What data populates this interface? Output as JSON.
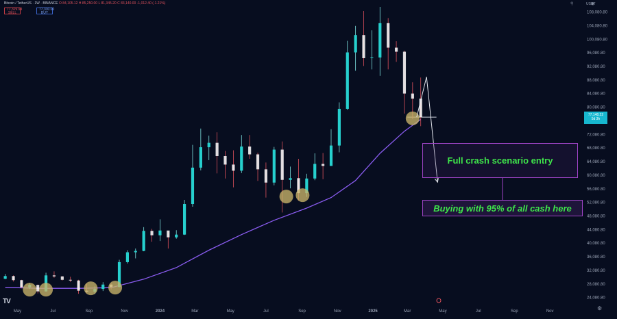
{
  "header": {
    "symbol_line": "Bitcoin / TetherUS · 1W · BINANCE",
    "ohlc": "O 84,105.12  H 85,250.00  L 81,345.20  C 83,140.00  -1,012.40 (-1.21%)",
    "sell_box": "77,329.99\nSELL",
    "buy_box": "77,330.00\nBUY",
    "currency": "USDT",
    "sell_color": "#e0525c",
    "buy_color": "#3a63c9"
  },
  "price_tag": "77,148.22\n5d 3h",
  "annotations": {
    "entry_label": "Full crash scenario entry",
    "buying_label": "Buying with 95% of all cash here"
  },
  "icons": {
    "tradingview_logo": "TV",
    "settings": "gear-icon",
    "replay": "replay-icon"
  },
  "chart_data": {
    "type": "candlestick",
    "title": "",
    "x_ticks": [
      "May",
      "Jul",
      "Sep",
      "Nov",
      "2024",
      "Mar",
      "May",
      "Jul",
      "Sep",
      "Nov",
      "2025",
      "Mar",
      "May",
      "Jul",
      "Sep",
      "Nov"
    ],
    "y_ticks": [
      24080.8,
      28080.8,
      32080.8,
      36080.8,
      40080.8,
      44080.8,
      48080.8,
      52080.8,
      56080.8,
      60080.8,
      64080.8,
      68080.8,
      72080.8,
      76080.8,
      80080.8,
      84080.8,
      88080.8,
      92080.8,
      96080.8,
      100080.8,
      104080.8,
      108080.8
    ],
    "ylim": [
      22000,
      110000
    ],
    "x_range": [
      "2023-04",
      "2025-12"
    ],
    "up_color": "#26d0ce",
    "down_color": "#e0525c",
    "candles_weekly_close": [
      [
        "2023-04-10",
        29600,
        31000,
        29500,
        30400
      ],
      [
        "2023-04-24",
        30400,
        30600,
        28800,
        29200
      ],
      [
        "2023-05-08",
        29200,
        29300,
        26800,
        27100
      ],
      [
        "2023-05-22",
        27100,
        28400,
        26600,
        27800
      ],
      [
        "2023-06-05",
        27800,
        27900,
        25300,
        25900
      ],
      [
        "2023-06-19",
        25900,
        31400,
        25800,
        30600
      ],
      [
        "2023-07-03",
        30600,
        31800,
        29900,
        30300
      ],
      [
        "2023-07-17",
        30300,
        30400,
        29100,
        29300
      ],
      [
        "2023-07-31",
        29300,
        30200,
        28700,
        29100
      ],
      [
        "2023-08-14",
        29100,
        29300,
        25200,
        26100
      ],
      [
        "2023-08-28",
        26100,
        28100,
        25400,
        25800
      ],
      [
        "2023-09-11",
        25800,
        27400,
        25100,
        26600
      ],
      [
        "2023-09-25",
        26600,
        28600,
        26000,
        27900
      ],
      [
        "2023-10-09",
        27900,
        28300,
        26500,
        27200
      ],
      [
        "2023-10-23",
        27200,
        35200,
        27100,
        34500
      ],
      [
        "2023-11-06",
        34500,
        38000,
        34100,
        37400
      ],
      [
        "2023-11-20",
        37400,
        38500,
        35600,
        37800
      ],
      [
        "2023-12-04",
        37800,
        44800,
        37700,
        43700
      ],
      [
        "2023-12-18",
        43700,
        44300,
        40500,
        42400
      ],
      [
        "2024-01-01",
        42400,
        47100,
        40700,
        43800
      ],
      [
        "2024-01-15",
        43800,
        43600,
        38500,
        41800
      ],
      [
        "2024-01-29",
        41800,
        43900,
        41400,
        42600
      ],
      [
        "2024-02-12",
        42600,
        52800,
        42500,
        51600
      ],
      [
        "2024-02-26",
        51600,
        69000,
        50800,
        62300
      ],
      [
        "2024-03-11",
        62300,
        73800,
        61500,
        68300
      ],
      [
        "2024-03-25",
        68300,
        71700,
        64500,
        69600
      ],
      [
        "2024-04-08",
        69600,
        72700,
        60600,
        65700
      ],
      [
        "2024-04-22",
        65700,
        67200,
        59100,
        63200
      ],
      [
        "2024-05-06",
        63200,
        67400,
        56500,
        61400
      ],
      [
        "2024-05-20",
        61400,
        71900,
        60700,
        68500
      ],
      [
        "2024-06-03",
        68500,
        71900,
        64900,
        66200
      ],
      [
        "2024-06-17",
        66200,
        66700,
        58400,
        61800
      ],
      [
        "2024-07-01",
        61800,
        63800,
        53500,
        57900
      ],
      [
        "2024-07-15",
        57900,
        68400,
        57100,
        67600
      ],
      [
        "2024-07-29",
        67600,
        70000,
        49100,
        58700
      ],
      [
        "2024-08-12",
        58700,
        62600,
        56200,
        59200
      ],
      [
        "2024-08-26",
        59200,
        64900,
        52600,
        54800
      ],
      [
        "2024-09-09",
        54800,
        60500,
        53700,
        59100
      ],
      [
        "2024-09-23",
        59100,
        66500,
        58600,
        63400
      ],
      [
        "2024-10-07",
        63400,
        66600,
        58900,
        62800
      ],
      [
        "2024-10-21",
        62800,
        73600,
        65500,
        68800
      ],
      [
        "2024-11-04",
        68800,
        81500,
        66800,
        79600
      ],
      [
        "2024-11-18",
        79600,
        99600,
        79300,
        96200
      ],
      [
        "2024-12-02",
        96200,
        104000,
        90800,
        101300
      ],
      [
        "2024-12-16",
        101300,
        108400,
        92200,
        94500
      ],
      [
        "2024-12-30",
        94500,
        102700,
        91200,
        94700
      ],
      [
        "2025-01-13",
        94700,
        109600,
        89300,
        104800
      ],
      [
        "2025-01-27",
        104800,
        106300,
        91200,
        97600
      ],
      [
        "2025-02-10",
        97600,
        99500,
        93400,
        96400
      ],
      [
        "2025-02-24",
        96400,
        96700,
        78200,
        84100
      ],
      [
        "2025-03-10",
        84100,
        87400,
        76600,
        82600
      ],
      [
        "2025-03-24",
        82600,
        88800,
        74500,
        77148
      ]
    ],
    "series": [
      {
        "type": "moving-average",
        "color": "#8a5cf0",
        "points": [
          [
            "2023-04-10",
            27100
          ],
          [
            "2023-06-05",
            26800
          ],
          [
            "2023-08-14",
            26800
          ],
          [
            "2023-10-09",
            27000
          ],
          [
            "2023-12-04",
            29500
          ],
          [
            "2024-01-29",
            32900
          ],
          [
            "2024-03-25",
            38000
          ],
          [
            "2024-05-20",
            42600
          ],
          [
            "2024-07-15",
            46800
          ],
          [
            "2024-09-09",
            50400
          ],
          [
            "2024-10-21",
            53500
          ],
          [
            "2024-12-02",
            58500
          ],
          [
            "2025-01-13",
            66500
          ],
          [
            "2025-02-24",
            73000
          ],
          [
            "2025-03-24",
            76500
          ]
        ]
      },
      {
        "type": "horizontal-line",
        "name": "",
        "value": 77148.22,
        "from": "2025-03-01",
        "to": "2025-04-20",
        "color": "#cfd4de"
      }
    ],
    "markers": [
      {
        "date": "2023-05-22",
        "price": 26400
      },
      {
        "date": "2023-06-19",
        "price": 26400
      },
      {
        "date": "2023-09-04",
        "price": 26800
      },
      {
        "date": "2023-10-16",
        "price": 27000
      },
      {
        "date": "2024-08-05",
        "price": 53800
      },
      {
        "date": "2024-09-02",
        "price": 54200
      },
      {
        "date": "2025-03-10",
        "price": 76800
      }
    ],
    "projection_path": [
      [
        "2025-03-17",
        77148
      ],
      [
        "2025-04-03",
        89000
      ],
      [
        "2025-04-22",
        58000
      ]
    ]
  }
}
